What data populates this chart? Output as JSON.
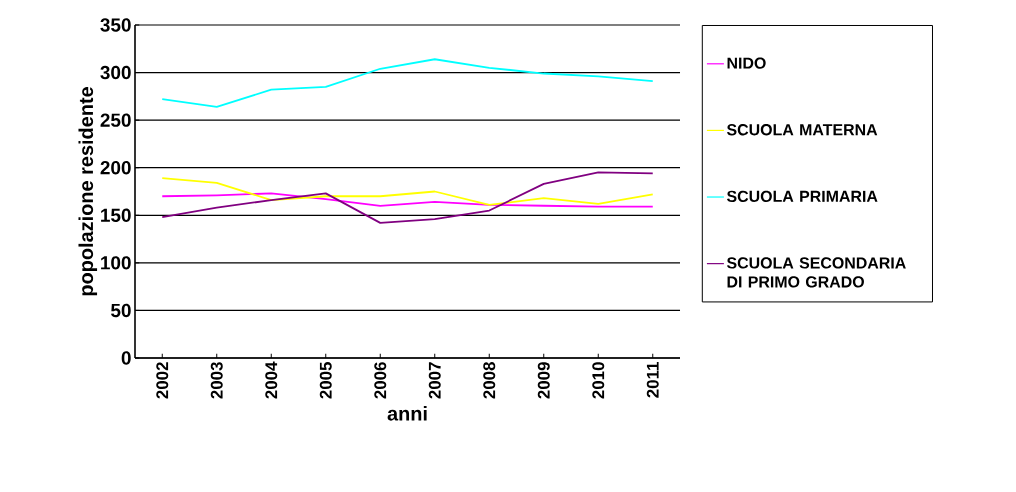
{
  "chart_data": {
    "type": "line",
    "xlabel": "anni",
    "ylabel": "popolazione residente",
    "categories": [
      "2002",
      "2003",
      "2004",
      "2005",
      "2006",
      "2007",
      "2008",
      "2009",
      "2010",
      "2011"
    ],
    "series": [
      {
        "name": "NIDO",
        "color": "#ff00ff",
        "values": [
          170,
          171,
          173,
          167,
          160,
          164,
          161,
          160,
          159,
          159
        ]
      },
      {
        "name": "SCUOLA MATERNA",
        "color": "#ffff00",
        "values": [
          189,
          184,
          166,
          170,
          170,
          175,
          161,
          168,
          162,
          172
        ]
      },
      {
        "name": "SCUOLA PRIMARIA",
        "color": "#00ffff",
        "values": [
          272,
          264,
          282,
          285,
          304,
          314,
          305,
          299,
          296,
          291
        ]
      },
      {
        "name": "SCUOLA SECONDARIA DI PRIMO GRADO",
        "color": "#800080",
        "values": [
          148,
          158,
          166,
          173,
          142,
          146,
          155,
          183,
          195,
          194
        ]
      }
    ],
    "ylim": [
      0,
      350
    ],
    "yticks": [
      0,
      50,
      100,
      150,
      200,
      250,
      300,
      350
    ],
    "grid": "y",
    "legend": "right",
    "marker": "none",
    "line_style": "solid"
  }
}
